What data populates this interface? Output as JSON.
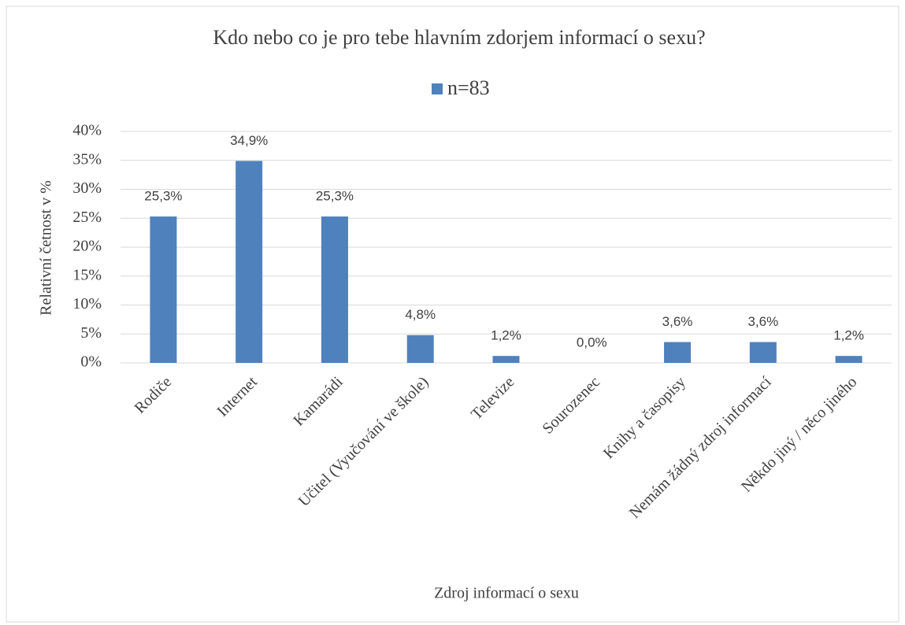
{
  "chart_data": {
    "type": "bar",
    "title": "Kdo nebo co je pro tebe hlavním zdorjem informací o sexu?",
    "x_label": "Zdroj informací o sexu",
    "y_label": "Relativní četnost v %",
    "categories": [
      "Rodiče",
      "Internet",
      "Kamarádi",
      "Učitel (Vyučování ve škole)",
      "Televize",
      "Sourozenec",
      "Knihy a časopisy",
      "Nemám žádný zdroj informací",
      "Někdo jiný / něco jiného"
    ],
    "series": [
      {
        "name": "n=83",
        "color": "#4f81bd",
        "values": [
          25.3,
          34.9,
          25.3,
          4.8,
          1.2,
          0.0,
          3.6,
          3.6,
          1.2
        ],
        "value_labels": [
          "25,3%",
          "34,9%",
          "25,3%",
          "4,8%",
          "1,2%",
          "0,0%",
          "3,6%",
          "3,6%",
          "1,2%"
        ]
      }
    ],
    "ylim": [
      0,
      40
    ],
    "yticks": [
      {
        "value": 0,
        "label": "0%"
      },
      {
        "value": 5,
        "label": "5%"
      },
      {
        "value": 10,
        "label": "10%"
      },
      {
        "value": 15,
        "label": "15%"
      },
      {
        "value": 20,
        "label": "20%"
      },
      {
        "value": 25,
        "label": "25%"
      },
      {
        "value": 30,
        "label": "30%"
      },
      {
        "value": 35,
        "label": "35%"
      },
      {
        "value": 40,
        "label": "40%"
      }
    ],
    "grid": true,
    "legend": "top"
  }
}
